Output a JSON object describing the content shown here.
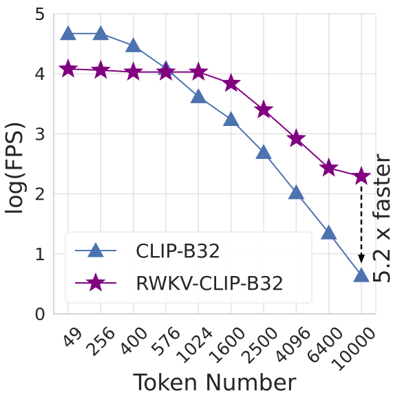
{
  "chart_data": {
    "type": "line",
    "title": "",
    "xlabel": "Token Number",
    "ylabel": "log(FPS)",
    "categories": [
      "49",
      "256",
      "400",
      "576",
      "1024",
      "1600",
      "2500",
      "4096",
      "6400",
      "10000"
    ],
    "ylim": [
      0,
      5
    ],
    "yticks": [
      "0",
      "1",
      "2",
      "3",
      "4",
      "5"
    ],
    "grid": true,
    "legend_position": "lower-left",
    "series": [
      {
        "name": "CLIP-B32",
        "marker": "triangle",
        "color": "#4c72b0",
        "values": [
          4.67,
          4.67,
          4.47,
          4.09,
          3.62,
          3.24,
          2.69,
          2.02,
          1.35,
          0.64
        ]
      },
      {
        "name": "RWKV-CLIP-B32",
        "marker": "star",
        "color": "#800080",
        "values": [
          4.08,
          4.06,
          4.03,
          4.03,
          4.03,
          3.84,
          3.4,
          2.92,
          2.43,
          2.29
        ]
      }
    ],
    "annotation": {
      "text": "5.2 x faster",
      "category": "10000",
      "from_value": 2.12,
      "to_value": 0.85
    }
  }
}
